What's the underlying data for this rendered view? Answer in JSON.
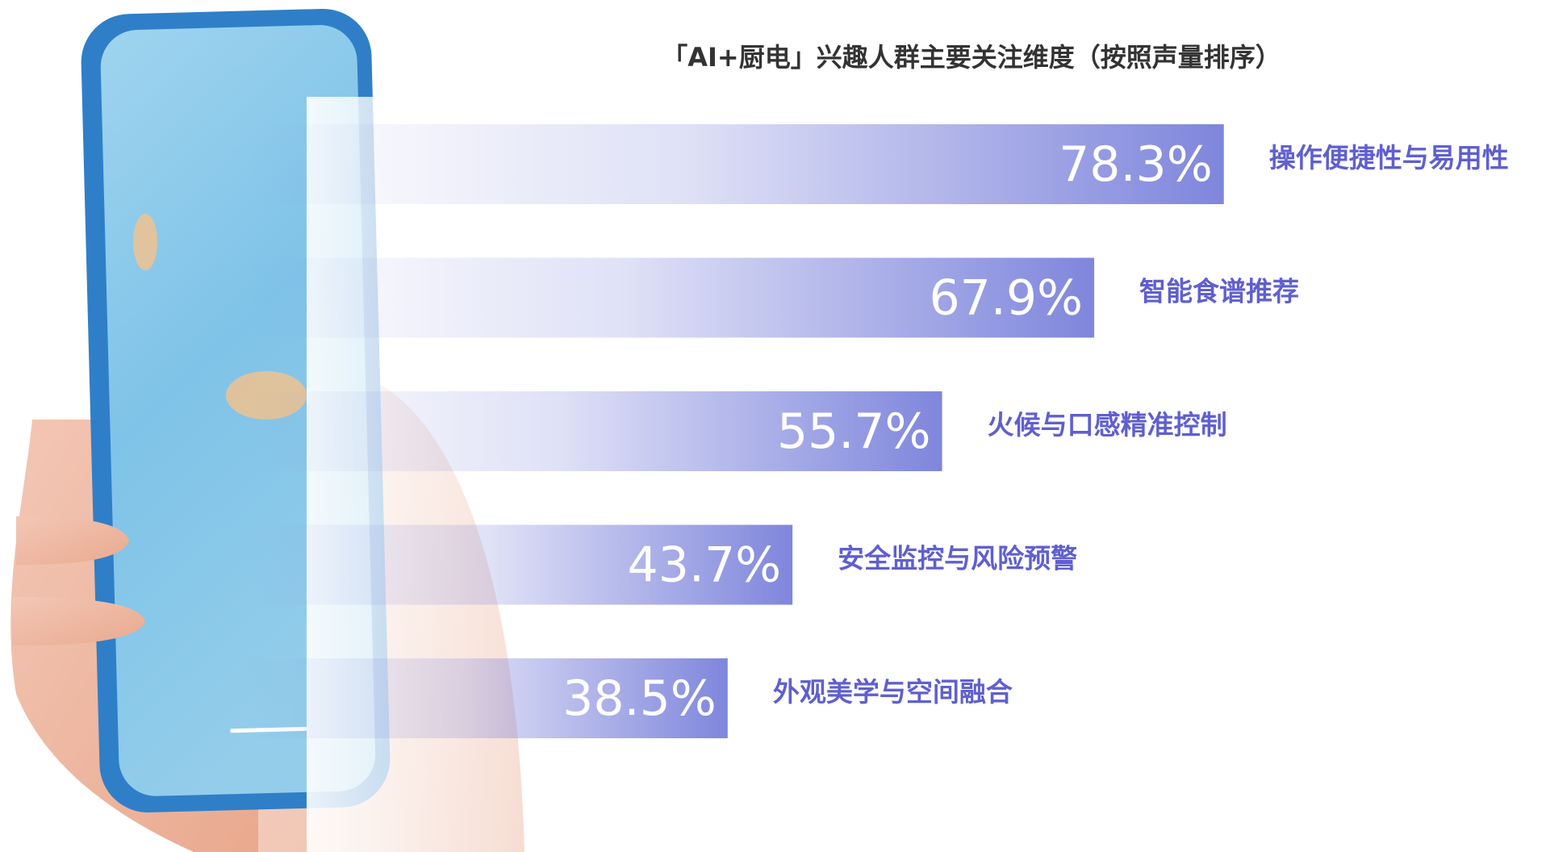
{
  "chart_data": {
    "type": "bar",
    "orientation": "horizontal",
    "title": "「AI+厨电」兴趣人群主要关注维度（按照声量排序）",
    "categories": [
      "操作便捷性与易用性",
      "智能食谱推荐",
      "火候与口感精准控制",
      "安全监控与风险预警",
      "外观美学与空间融合"
    ],
    "values": [
      78.3,
      67.9,
      55.7,
      43.7,
      38.5
    ],
    "value_labels": [
      "78.3%",
      "67.9%",
      "55.7%",
      "43.7%",
      "38.5%"
    ],
    "color": "#7f86dc"
  }
}
